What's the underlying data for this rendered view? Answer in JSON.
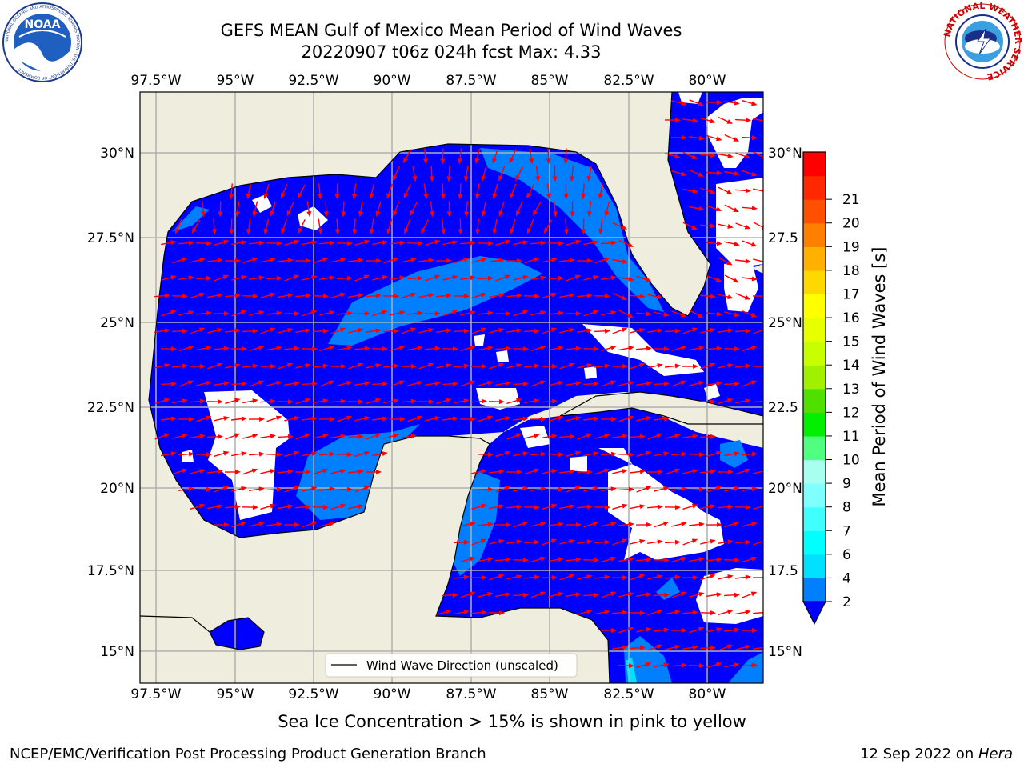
{
  "title": {
    "line1": "GEFS MEAN Gulf of Mexico Mean Period of Wind Waves",
    "line2": "20220907 t06z 024h fcst   Max: 4.33"
  },
  "logos": {
    "noaa": {
      "icon": "noaa-logo",
      "text": "NOAA",
      "ring_text": "NATIONAL OCEANIC AND ATMOSPHERIC ADMINISTRATION · U.S. DEPARTMENT OF COMMERCE"
    },
    "nws": {
      "icon": "nws-logo",
      "ring_text": "NATIONAL WEATHER SERVICE"
    }
  },
  "map": {
    "lon_ticks": [
      "97.5°W",
      "95°W",
      "92.5°W",
      "90°W",
      "87.5°W",
      "85°W",
      "82.5°W",
      "80°W"
    ],
    "lat_ticks_left": [
      "30°N",
      "27.5°N",
      "25°N",
      "22.5°N",
      "20°N",
      "17.5°N",
      "15°N"
    ],
    "lat_ticks_right": [
      "30°N",
      "27.5",
      "25°N",
      "22.5",
      "20°N",
      "17.5",
      "15°N"
    ],
    "land_color": "#efedde",
    "low_period_color": "#0000ff",
    "arrow_color": "#ff0000",
    "legend": {
      "label": "Wind Wave Direction (unscaled)"
    }
  },
  "colorbar": {
    "label": "Mean Period of Wind Waves [s]",
    "ticks": [
      "2",
      "4",
      "6",
      "7",
      "8",
      "9",
      "10",
      "11",
      "12",
      "13",
      "14",
      "15",
      "16",
      "17",
      "18",
      "19",
      "20",
      "21"
    ],
    "colors": [
      "#0080ff",
      "#00e0ff",
      "#00ffff",
      "#40ffff",
      "#80ffff",
      "#a8fff0",
      "#50ff80",
      "#00f000",
      "#50e000",
      "#a0f000",
      "#c8ff00",
      "#e8ff00",
      "#ffff00",
      "#ffd800",
      "#ffb000",
      "#ff8000",
      "#ff5000",
      "#ff2800",
      "#ff0000"
    ],
    "under_color": "#0000ff"
  },
  "notes": {
    "ice": "Sea Ice Concentration > 15% is shown in pink to yellow"
  },
  "footer": {
    "left": "NCEP/EMC/Verification Post Processing Product Generation Branch",
    "right_date": "12 Sep 2022 on ",
    "right_host": "Hera"
  }
}
